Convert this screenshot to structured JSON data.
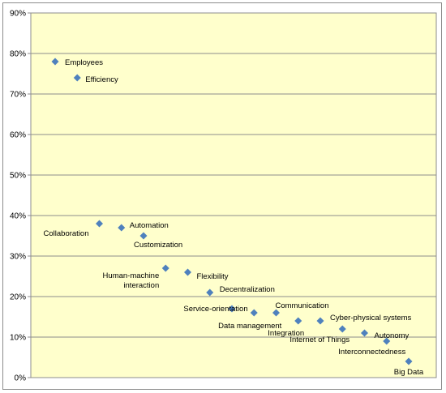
{
  "chart_data": {
    "type": "scatter",
    "title": "",
    "xlabel": "",
    "ylabel": "",
    "ylim": [
      0,
      0.9
    ],
    "y_ticks": [
      "0%",
      "10%",
      "20%",
      "30%",
      "40%",
      "50%",
      "60%",
      "70%",
      "80%",
      "90%"
    ],
    "y_tick_values": [
      0,
      0.1,
      0.2,
      0.3,
      0.4,
      0.5,
      0.6,
      0.7,
      0.8,
      0.9
    ],
    "grid": "horizontal",
    "legend": "none",
    "plot_background": "#ffffcc",
    "marker_color": "#4f81bd",
    "gridline_color": "#8c8c8c",
    "points": [
      {
        "label": "Employees",
        "x": 1,
        "y": 0.78
      },
      {
        "label": "Efficiency",
        "x": 2,
        "y": 0.74
      },
      {
        "label": "Collaboration",
        "x": 3,
        "y": 0.38
      },
      {
        "label": "Automation",
        "x": 4,
        "y": 0.37
      },
      {
        "label": "Customization",
        "x": 5,
        "y": 0.35
      },
      {
        "label": "Human-machine interaction",
        "x": 6,
        "y": 0.27
      },
      {
        "label": "Flexibility",
        "x": 7,
        "y": 0.26
      },
      {
        "label": "Decentralization",
        "x": 8,
        "y": 0.21
      },
      {
        "label": "Service-orientation",
        "x": 9,
        "y": 0.17
      },
      {
        "label": "Data management",
        "x": 10,
        "y": 0.16
      },
      {
        "label": "Communication",
        "x": 11,
        "y": 0.16
      },
      {
        "label": "Integration",
        "x": 12,
        "y": 0.14
      },
      {
        "label": "Cyber-physical systems",
        "x": 13,
        "y": 0.14
      },
      {
        "label": "Internet of Things",
        "x": 14,
        "y": 0.12
      },
      {
        "label": "Autonomy",
        "x": 15,
        "y": 0.11
      },
      {
        "label": "Interconnectedness",
        "x": 16,
        "y": 0.09
      },
      {
        "label": "Big Data",
        "x": 17,
        "y": 0.04
      }
    ]
  }
}
